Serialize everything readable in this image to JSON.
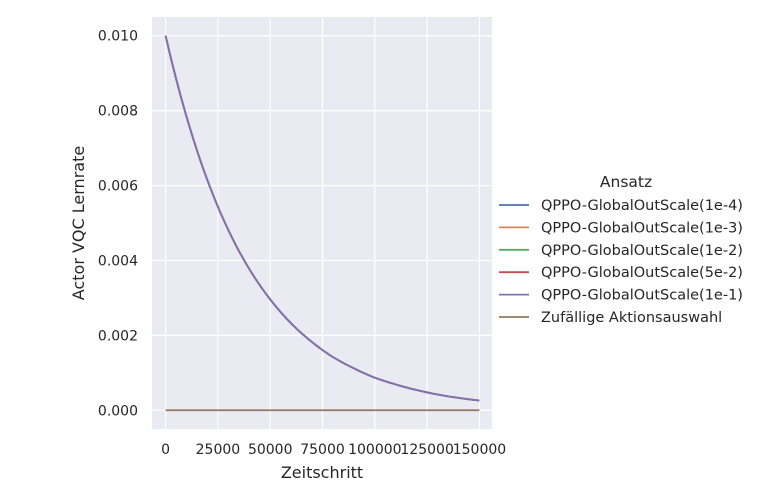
{
  "chart_data": {
    "type": "line",
    "xlabel": "Zeitschritt",
    "ylabel": "Actor VQC Lernrate",
    "xlim": [
      -6500,
      156000
    ],
    "ylim": [
      -0.0005,
      0.0105
    ],
    "x_ticks": [
      0,
      25000,
      50000,
      75000,
      100000,
      125000,
      150000
    ],
    "x_tick_labels": [
      "0",
      "25000",
      "50000",
      "75000",
      "100000",
      "125000",
      "150000"
    ],
    "y_ticks": [
      0.0,
      0.002,
      0.004,
      0.006,
      0.008,
      0.01
    ],
    "y_tick_labels": [
      "0.000",
      "0.002",
      "0.004",
      "0.006",
      "0.008",
      "0.010"
    ],
    "grid": true,
    "background": "#eaeaf2",
    "legend": {
      "title": "Ansatz",
      "placement": "right-outside"
    },
    "x": [
      0,
      10000,
      20000,
      30000,
      40000,
      50000,
      60000,
      70000,
      80000,
      90000,
      100000,
      110000,
      120000,
      130000,
      140000,
      150000
    ],
    "series": [
      {
        "name": "QPPO-GlobalOutScale(1e-4)",
        "color": "#4c72b0",
        "values": [
          0.01,
          0.00784,
          0.00614,
          0.00481,
          0.00377,
          0.00296,
          0.00232,
          0.00182,
          0.00142,
          0.00112,
          0.00087,
          0.00069,
          0.00054,
          0.00042,
          0.00033,
          0.00026
        ]
      },
      {
        "name": "QPPO-GlobalOutScale(1e-3)",
        "color": "#dd8452",
        "values": [
          0.01,
          0.00784,
          0.00614,
          0.00481,
          0.00377,
          0.00296,
          0.00232,
          0.00182,
          0.00142,
          0.00112,
          0.00087,
          0.00069,
          0.00054,
          0.00042,
          0.00033,
          0.00026
        ]
      },
      {
        "name": "QPPO-GlobalOutScale(1e-2)",
        "color": "#55a868",
        "values": [
          0.01,
          0.00784,
          0.00614,
          0.00481,
          0.00377,
          0.00296,
          0.00232,
          0.00182,
          0.00142,
          0.00112,
          0.00087,
          0.00069,
          0.00054,
          0.00042,
          0.00033,
          0.00026
        ]
      },
      {
        "name": "QPPO-GlobalOutScale(5e-2)",
        "color": "#c44e52",
        "values": [
          0.01,
          0.00784,
          0.00614,
          0.00481,
          0.00377,
          0.00296,
          0.00232,
          0.00182,
          0.00142,
          0.00112,
          0.00087,
          0.00069,
          0.00054,
          0.00042,
          0.00033,
          0.00026
        ]
      },
      {
        "name": "QPPO-GlobalOutScale(1e-1)",
        "color": "#8172b3",
        "values": [
          0.01,
          0.00784,
          0.00614,
          0.00481,
          0.00377,
          0.00296,
          0.00232,
          0.00182,
          0.00142,
          0.00112,
          0.00087,
          0.00069,
          0.00054,
          0.00042,
          0.00033,
          0.00026
        ]
      },
      {
        "name": "Zufällige Aktionsauswahl",
        "color": "#937860",
        "values": [
          0,
          0,
          0,
          0,
          0,
          0,
          0,
          0,
          0,
          0,
          0,
          0,
          0,
          0,
          0,
          0
        ]
      }
    ]
  }
}
